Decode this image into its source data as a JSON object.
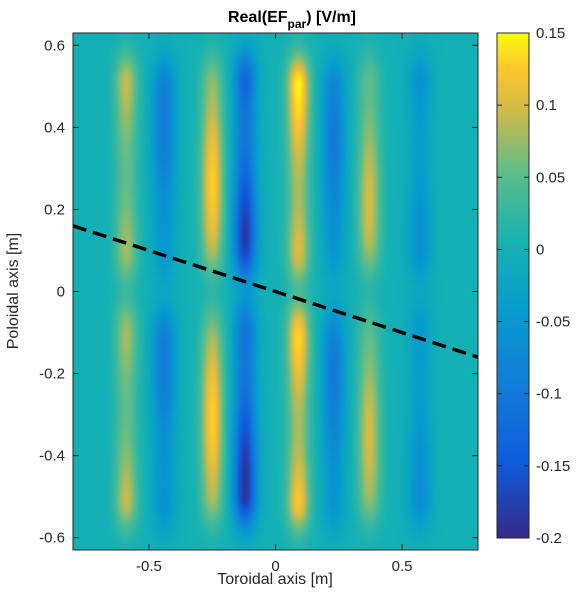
{
  "chart_data": {
    "type": "heatmap",
    "title": {
      "prefix": "Real(EF",
      "subscript": "par",
      "suffix": ") [V/m]"
    },
    "xlabel": "Toroidal axis [m]",
    "ylabel": "Poloidal axis [m]",
    "xlim": [
      -0.8,
      0.8
    ],
    "ylim": [
      -0.63,
      0.63
    ],
    "xticks": [
      -0.5,
      0,
      0.5
    ],
    "xtick_labels": [
      "-0.5",
      "0",
      "0.5"
    ],
    "yticks": [
      -0.6,
      -0.4,
      -0.2,
      0,
      0.2,
      0.4,
      0.6
    ],
    "ytick_labels": [
      "-0.6",
      "-0.4",
      "-0.2",
      "0",
      "0.2",
      "0.4",
      "0.6"
    ],
    "colorbar": {
      "limits": [
        -0.2,
        0.15
      ],
      "ticks": [
        -0.2,
        -0.15,
        -0.1,
        -0.05,
        0,
        0.05,
        0.1,
        0.15
      ],
      "tick_labels": [
        "-0.2",
        "-0.15",
        "-0.1",
        "-0.05",
        "0",
        "0.05",
        "0.1",
        "0.15"
      ],
      "colormap": "parula"
    },
    "field_stripes": [
      {
        "x": -0.59,
        "amplitude": 0.1
      },
      {
        "x": -0.44,
        "amplitude": -0.1
      },
      {
        "x": -0.25,
        "amplitude": 0.13
      },
      {
        "x": -0.12,
        "amplitude": -0.19
      },
      {
        "x": 0.09,
        "amplitude": 0.15
      },
      {
        "x": 0.23,
        "amplitude": -0.1
      },
      {
        "x": 0.37,
        "amplitude": 0.1
      },
      {
        "x": 0.57,
        "amplitude": -0.07
      }
    ],
    "dashed_line": {
      "color": "#000000",
      "points": [
        [
          -0.8,
          0.16
        ],
        [
          0.8,
          -0.16
        ]
      ]
    }
  }
}
